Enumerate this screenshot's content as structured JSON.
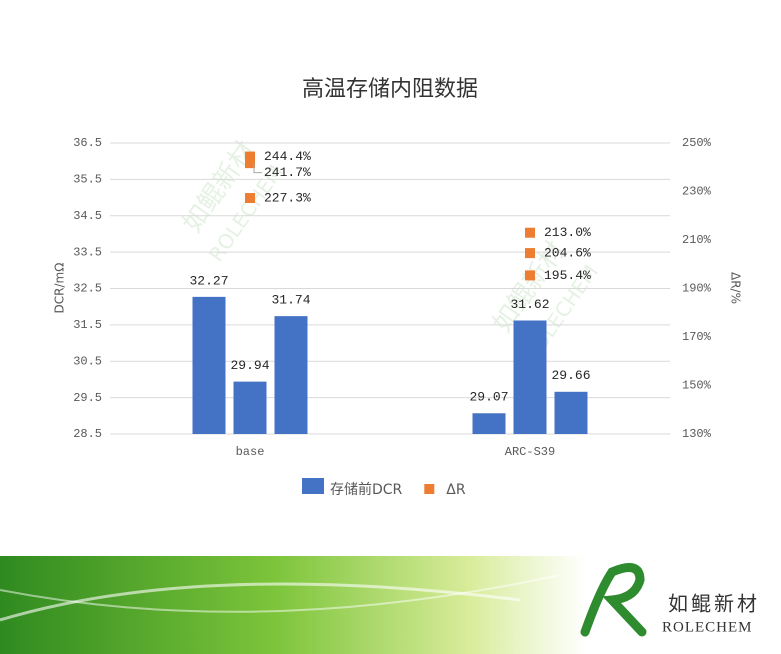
{
  "chart_data": {
    "type": "bar",
    "title": "高温存储内阻数据",
    "categories": [
      null,
      "base",
      null,
      null,
      "ARC-S39",
      null
    ],
    "series": [
      {
        "name": "存储前DCR",
        "color": "#4472c4",
        "values": [
          32.27,
          29.94,
          31.74,
          29.07,
          31.62,
          29.66
        ]
      },
      {
        "name": "ΔR",
        "color": "#ed7d31",
        "axis": "y2",
        "marker": "square",
        "values": [
          244.4,
          241.7,
          227.3,
          213.0,
          204.6,
          195.4
        ],
        "value_labels": [
          "244.4%",
          "241.7%",
          "227.3%",
          "213.0%",
          "204.6%",
          "195.4%"
        ]
      }
    ],
    "ylabel": "DCR/mΩ",
    "y2label": "ΔR/%",
    "ylim": [
      28.5,
      36.5
    ],
    "yticks": [
      28.5,
      29.5,
      30.5,
      31.5,
      32.5,
      33.5,
      34.5,
      35.5,
      36.5
    ],
    "y2lim": [
      130,
      250
    ],
    "y2ticks": [
      {
        "value": 130,
        "label": "130%"
      },
      {
        "value": 150,
        "label": "150%"
      },
      {
        "value": 170,
        "label": "170%"
      },
      {
        "value": 190,
        "label": "190%"
      },
      {
        "value": 210,
        "label": "210%"
      },
      {
        "value": 230,
        "label": "230%"
      },
      {
        "value": 250,
        "label": "250%"
      }
    ],
    "grid": true,
    "legend": "bottom"
  },
  "logo": {
    "name_cn": "如鲲新材",
    "name_en": "ROLECHEM"
  }
}
